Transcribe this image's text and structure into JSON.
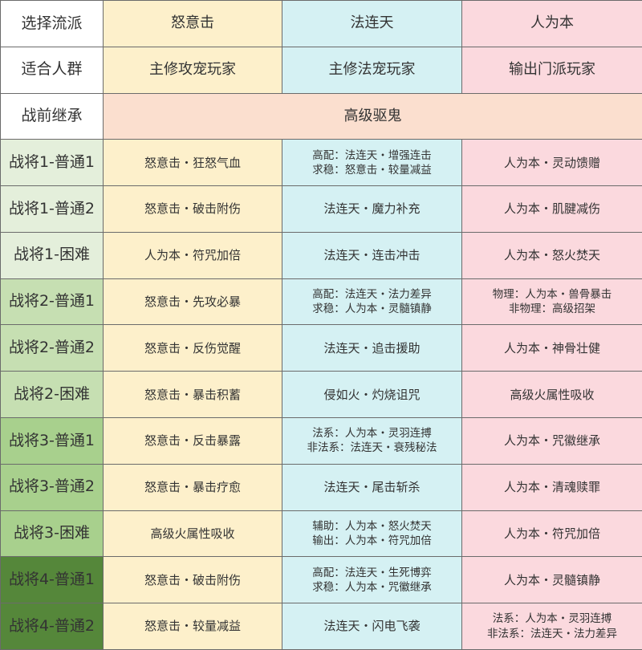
{
  "header": {
    "label": "选择流派",
    "columns": [
      "怒意击",
      "法连天",
      "人为本"
    ]
  },
  "suitable": {
    "label": "适合人群",
    "values": [
      "主修攻宠玩家",
      "主修法宠玩家",
      "输出门派玩家"
    ]
  },
  "inherit": {
    "label": "战前继承",
    "value": "高级驱鬼"
  },
  "colors": {
    "col1": "#fdf0cb",
    "col2": "#d5f1f3",
    "col3": "#fbd9de",
    "inherit": "#fbdfcf",
    "stage1": "#e4efdb",
    "stage2": "#c6dfb2",
    "stage3": "#a8d08d",
    "stage4": "#55873a"
  },
  "rows": [
    {
      "label": "战将1-普通1",
      "c1": [
        "怒意击・狂怒气血"
      ],
      "c2": [
        "高配：法连天・增强连击",
        "求稳：怒意击・较量减益"
      ],
      "c3": [
        "人为本・灵动馈赠"
      ]
    },
    {
      "label": "战将1-普通2",
      "c1": [
        "怒意击・破击附伤"
      ],
      "c2": [
        "法连天・魔力补充"
      ],
      "c3": [
        "人为本・肌腱减伤"
      ]
    },
    {
      "label": "战将1-困难",
      "c1": [
        "人为本・符咒加倍"
      ],
      "c2": [
        "法连天・连击冲击"
      ],
      "c3": [
        "人为本・怒火焚天"
      ]
    },
    {
      "label": "战将2-普通1",
      "c1": [
        "怒意击・先攻必暴"
      ],
      "c2": [
        "高配：法连天・法力差异",
        "求稳：人为本・灵髓镇静"
      ],
      "c3": [
        "物理：人为本・兽骨暴击",
        "非物理：高级招架"
      ]
    },
    {
      "label": "战将2-普通2",
      "c1": [
        "怒意击・反伤觉醒"
      ],
      "c2": [
        "法连天・追击援助"
      ],
      "c3": [
        "人为本・神骨壮健"
      ]
    },
    {
      "label": "战将2-困难",
      "c1": [
        "怒意击・暴击积蓄"
      ],
      "c2": [
        "侵如火・灼烧诅咒"
      ],
      "c3": [
        "高级火属性吸收"
      ]
    },
    {
      "label": "战将3-普通1",
      "c1": [
        "怒意击・反击暴露"
      ],
      "c2": [
        "法系：人为本・灵羽连搏",
        "非法系：法连天・衰残秘法"
      ],
      "c3": [
        "人为本・咒徽继承"
      ]
    },
    {
      "label": "战将3-普通2",
      "c1": [
        "怒意击・暴击疗愈"
      ],
      "c2": [
        "法连天・尾击斩杀"
      ],
      "c3": [
        "人为本・清魂赎罪"
      ]
    },
    {
      "label": "战将3-困难",
      "c1": [
        "高级火属性吸收"
      ],
      "c2": [
        "辅助：人为本・怒火焚天",
        "输出：人为本・符咒加倍"
      ],
      "c3": [
        "人为本・符咒加倍"
      ]
    },
    {
      "label": "战将4-普通1",
      "c1": [
        "怒意击・破击附伤"
      ],
      "c2": [
        "高配：法连天・生死博弈",
        "求稳：人为本・咒徽继承"
      ],
      "c3": [
        "人为本・灵髓镇静"
      ]
    },
    {
      "label": "战将4-普通2",
      "c1": [
        "怒意击・较量减益"
      ],
      "c2": [
        "法连天・闪电飞袭"
      ],
      "c3": [
        "法系：人为本・灵羽连搏",
        "非法系：法连天・法力差异"
      ]
    }
  ]
}
